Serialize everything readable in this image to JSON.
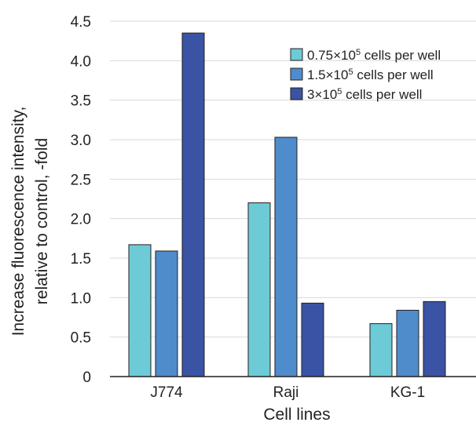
{
  "chart_data": {
    "type": "bar",
    "xlabel": "Cell lines",
    "ylabel_lines": [
      "Increase fluorescence intensity,",
      "relative to control, -fold"
    ],
    "categories": [
      "J774",
      "Raji",
      "KG-1"
    ],
    "ylim": [
      0,
      4.5
    ],
    "yticks": [
      "0",
      "0.5",
      "1.0",
      "1.5",
      "2.0",
      "2.5",
      "3.0",
      "3.5",
      "4.0",
      "4.5"
    ],
    "grid": true,
    "legend_position": "top-right",
    "series": [
      {
        "name": "0.75×10⁵ cells per well",
        "name_parts": [
          "0.75×10",
          "5",
          " cells per well"
        ],
        "color": "#6ccbd6",
        "values": [
          1.67,
          2.2,
          0.67
        ]
      },
      {
        "name": "1.5×10⁵ cells per well",
        "name_parts": [
          "1.5×10",
          "5",
          " cells per well"
        ],
        "color": "#4f8ccb",
        "values": [
          1.59,
          3.03,
          0.84
        ]
      },
      {
        "name": "3×10⁵ cells per well",
        "name_parts": [
          "3×10",
          "5",
          " cells per well"
        ],
        "color": "#3a53a4",
        "values": [
          4.35,
          0.93,
          0.95
        ]
      }
    ]
  }
}
